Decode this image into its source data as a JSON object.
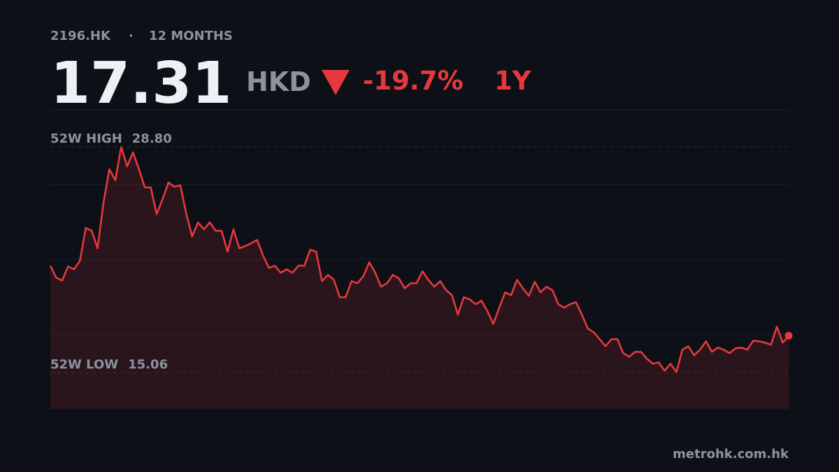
{
  "header": {
    "ticker": "2196.HK",
    "separator": "·",
    "period": "12 MONTHS",
    "price": "17.31",
    "currency": "HKD",
    "change": "-19.7%",
    "range": "1Y"
  },
  "chart_data": {
    "type": "line",
    "color": "#e5393d",
    "values": [
      21.57,
      20.84,
      20.67,
      21.52,
      21.35,
      21.86,
      23.86,
      23.69,
      22.63,
      25.4,
      27.44,
      26.76,
      28.8,
      27.61,
      28.46,
      27.44,
      26.33,
      26.33,
      24.71,
      25.61,
      26.63,
      26.37,
      26.46,
      24.76,
      23.35,
      24.2,
      23.78,
      24.2,
      23.69,
      23.69,
      22.42,
      23.78,
      22.63,
      22.76,
      22.93,
      23.14,
      22.2,
      21.44,
      21.57,
      21.14,
      21.35,
      21.14,
      21.57,
      21.57,
      22.54,
      22.42,
      20.63,
      21.01,
      20.71,
      19.65,
      19.65,
      20.63,
      20.5,
      20.93,
      21.78,
      21.14,
      20.29,
      20.5,
      21.01,
      20.8,
      20.2,
      20.5,
      20.5,
      21.23,
      20.71,
      20.29,
      20.63,
      20.08,
      19.78,
      18.59,
      19.65,
      19.52,
      19.23,
      19.44,
      18.8,
      18.03,
      19.01,
      19.95,
      19.78,
      20.71,
      20.2,
      19.74,
      20.59,
      19.95,
      20.29,
      20.08,
      19.23,
      19.01,
      19.23,
      19.35,
      18.59,
      17.74,
      17.52,
      17.1,
      16.67,
      17.1,
      17.1,
      16.25,
      16.03,
      16.33,
      16.33,
      15.91,
      15.61,
      15.69,
      15.18,
      15.61,
      15.1,
      16.46,
      16.67,
      16.12,
      16.46,
      16.97,
      16.33,
      16.59,
      16.46,
      16.25,
      16.54,
      16.59,
      16.46,
      17.01,
      16.97,
      16.89,
      16.76,
      17.86,
      16.89,
      17.31
    ],
    "ylim": [
      12.85,
      31.05
    ],
    "high": {
      "label": "52W HIGH",
      "value": 28.8,
      "value_label": "28.80"
    },
    "low": {
      "label": "52W LOW",
      "value": 15.06,
      "value_label": "15.06"
    }
  },
  "footer": "metrohk.com.hk"
}
